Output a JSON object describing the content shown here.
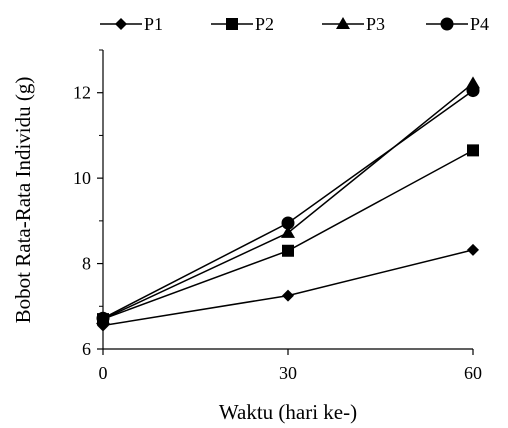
{
  "chart_data": {
    "type": "line",
    "x": [
      0,
      30,
      60
    ],
    "xticks": [
      "0",
      "30",
      "60"
    ],
    "yticks": [
      "6",
      "8",
      "10",
      "12"
    ],
    "xlim": [
      0,
      60
    ],
    "ylim": [
      6,
      13
    ],
    "xlabel": "Waktu (hari ke-)",
    "ylabel": "Bobot Rata-Rata Individu (g)",
    "grid": false,
    "legend_position": "top",
    "series": [
      {
        "name": "P1",
        "marker": "diamond",
        "values": [
          6.55,
          7.25,
          8.32
        ]
      },
      {
        "name": "P2",
        "marker": "square",
        "values": [
          6.7,
          8.3,
          10.65
        ]
      },
      {
        "name": "P3",
        "marker": "triangle",
        "values": [
          6.7,
          8.72,
          12.22
        ]
      },
      {
        "name": "P4",
        "marker": "circle",
        "values": [
          6.72,
          8.95,
          12.05
        ]
      }
    ],
    "colors": {
      "line": "#000000",
      "marker": "#000000"
    }
  }
}
